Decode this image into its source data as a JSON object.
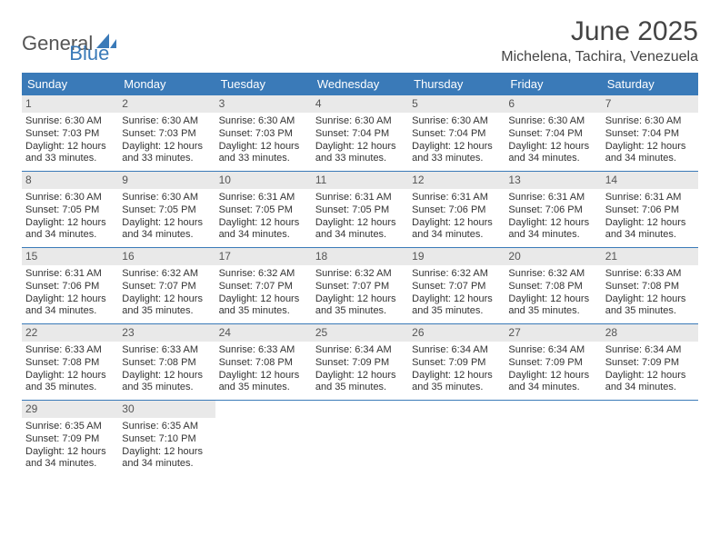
{
  "brand": {
    "word1": "General",
    "word2": "Blue"
  },
  "title": "June 2025",
  "location": "Michelena, Tachira, Venezuela",
  "colors": {
    "header_bg": "#3a7ab8",
    "header_text": "#ffffff",
    "daynum_bg": "#e9e9e9",
    "body_text": "#333333",
    "page_bg": "#ffffff"
  },
  "typography": {
    "title_fontsize": 30,
    "location_fontsize": 16,
    "dayhead_fontsize": 13,
    "cell_fontsize": 11
  },
  "layout": {
    "columns": 7,
    "rows_of_days": 5
  },
  "weekdays": [
    "Sunday",
    "Monday",
    "Tuesday",
    "Wednesday",
    "Thursday",
    "Friday",
    "Saturday"
  ],
  "days": [
    {
      "n": "1",
      "sunrise": "Sunrise: 6:30 AM",
      "sunset": "Sunset: 7:03 PM",
      "dl1": "Daylight: 12 hours",
      "dl2": "and 33 minutes."
    },
    {
      "n": "2",
      "sunrise": "Sunrise: 6:30 AM",
      "sunset": "Sunset: 7:03 PM",
      "dl1": "Daylight: 12 hours",
      "dl2": "and 33 minutes."
    },
    {
      "n": "3",
      "sunrise": "Sunrise: 6:30 AM",
      "sunset": "Sunset: 7:03 PM",
      "dl1": "Daylight: 12 hours",
      "dl2": "and 33 minutes."
    },
    {
      "n": "4",
      "sunrise": "Sunrise: 6:30 AM",
      "sunset": "Sunset: 7:04 PM",
      "dl1": "Daylight: 12 hours",
      "dl2": "and 33 minutes."
    },
    {
      "n": "5",
      "sunrise": "Sunrise: 6:30 AM",
      "sunset": "Sunset: 7:04 PM",
      "dl1": "Daylight: 12 hours",
      "dl2": "and 33 minutes."
    },
    {
      "n": "6",
      "sunrise": "Sunrise: 6:30 AM",
      "sunset": "Sunset: 7:04 PM",
      "dl1": "Daylight: 12 hours",
      "dl2": "and 34 minutes."
    },
    {
      "n": "7",
      "sunrise": "Sunrise: 6:30 AM",
      "sunset": "Sunset: 7:04 PM",
      "dl1": "Daylight: 12 hours",
      "dl2": "and 34 minutes."
    },
    {
      "n": "8",
      "sunrise": "Sunrise: 6:30 AM",
      "sunset": "Sunset: 7:05 PM",
      "dl1": "Daylight: 12 hours",
      "dl2": "and 34 minutes."
    },
    {
      "n": "9",
      "sunrise": "Sunrise: 6:30 AM",
      "sunset": "Sunset: 7:05 PM",
      "dl1": "Daylight: 12 hours",
      "dl2": "and 34 minutes."
    },
    {
      "n": "10",
      "sunrise": "Sunrise: 6:31 AM",
      "sunset": "Sunset: 7:05 PM",
      "dl1": "Daylight: 12 hours",
      "dl2": "and 34 minutes."
    },
    {
      "n": "11",
      "sunrise": "Sunrise: 6:31 AM",
      "sunset": "Sunset: 7:05 PM",
      "dl1": "Daylight: 12 hours",
      "dl2": "and 34 minutes."
    },
    {
      "n": "12",
      "sunrise": "Sunrise: 6:31 AM",
      "sunset": "Sunset: 7:06 PM",
      "dl1": "Daylight: 12 hours",
      "dl2": "and 34 minutes."
    },
    {
      "n": "13",
      "sunrise": "Sunrise: 6:31 AM",
      "sunset": "Sunset: 7:06 PM",
      "dl1": "Daylight: 12 hours",
      "dl2": "and 34 minutes."
    },
    {
      "n": "14",
      "sunrise": "Sunrise: 6:31 AM",
      "sunset": "Sunset: 7:06 PM",
      "dl1": "Daylight: 12 hours",
      "dl2": "and 34 minutes."
    },
    {
      "n": "15",
      "sunrise": "Sunrise: 6:31 AM",
      "sunset": "Sunset: 7:06 PM",
      "dl1": "Daylight: 12 hours",
      "dl2": "and 34 minutes."
    },
    {
      "n": "16",
      "sunrise": "Sunrise: 6:32 AM",
      "sunset": "Sunset: 7:07 PM",
      "dl1": "Daylight: 12 hours",
      "dl2": "and 35 minutes."
    },
    {
      "n": "17",
      "sunrise": "Sunrise: 6:32 AM",
      "sunset": "Sunset: 7:07 PM",
      "dl1": "Daylight: 12 hours",
      "dl2": "and 35 minutes."
    },
    {
      "n": "18",
      "sunrise": "Sunrise: 6:32 AM",
      "sunset": "Sunset: 7:07 PM",
      "dl1": "Daylight: 12 hours",
      "dl2": "and 35 minutes."
    },
    {
      "n": "19",
      "sunrise": "Sunrise: 6:32 AM",
      "sunset": "Sunset: 7:07 PM",
      "dl1": "Daylight: 12 hours",
      "dl2": "and 35 minutes."
    },
    {
      "n": "20",
      "sunrise": "Sunrise: 6:32 AM",
      "sunset": "Sunset: 7:08 PM",
      "dl1": "Daylight: 12 hours",
      "dl2": "and 35 minutes."
    },
    {
      "n": "21",
      "sunrise": "Sunrise: 6:33 AM",
      "sunset": "Sunset: 7:08 PM",
      "dl1": "Daylight: 12 hours",
      "dl2": "and 35 minutes."
    },
    {
      "n": "22",
      "sunrise": "Sunrise: 6:33 AM",
      "sunset": "Sunset: 7:08 PM",
      "dl1": "Daylight: 12 hours",
      "dl2": "and 35 minutes."
    },
    {
      "n": "23",
      "sunrise": "Sunrise: 6:33 AM",
      "sunset": "Sunset: 7:08 PM",
      "dl1": "Daylight: 12 hours",
      "dl2": "and 35 minutes."
    },
    {
      "n": "24",
      "sunrise": "Sunrise: 6:33 AM",
      "sunset": "Sunset: 7:08 PM",
      "dl1": "Daylight: 12 hours",
      "dl2": "and 35 minutes."
    },
    {
      "n": "25",
      "sunrise": "Sunrise: 6:34 AM",
      "sunset": "Sunset: 7:09 PM",
      "dl1": "Daylight: 12 hours",
      "dl2": "and 35 minutes."
    },
    {
      "n": "26",
      "sunrise": "Sunrise: 6:34 AM",
      "sunset": "Sunset: 7:09 PM",
      "dl1": "Daylight: 12 hours",
      "dl2": "and 35 minutes."
    },
    {
      "n": "27",
      "sunrise": "Sunrise: 6:34 AM",
      "sunset": "Sunset: 7:09 PM",
      "dl1": "Daylight: 12 hours",
      "dl2": "and 34 minutes."
    },
    {
      "n": "28",
      "sunrise": "Sunrise: 6:34 AM",
      "sunset": "Sunset: 7:09 PM",
      "dl1": "Daylight: 12 hours",
      "dl2": "and 34 minutes."
    },
    {
      "n": "29",
      "sunrise": "Sunrise: 6:35 AM",
      "sunset": "Sunset: 7:09 PM",
      "dl1": "Daylight: 12 hours",
      "dl2": "and 34 minutes."
    },
    {
      "n": "30",
      "sunrise": "Sunrise: 6:35 AM",
      "sunset": "Sunset: 7:10 PM",
      "dl1": "Daylight: 12 hours",
      "dl2": "and 34 minutes."
    }
  ],
  "trailing_empty_cells": 5
}
